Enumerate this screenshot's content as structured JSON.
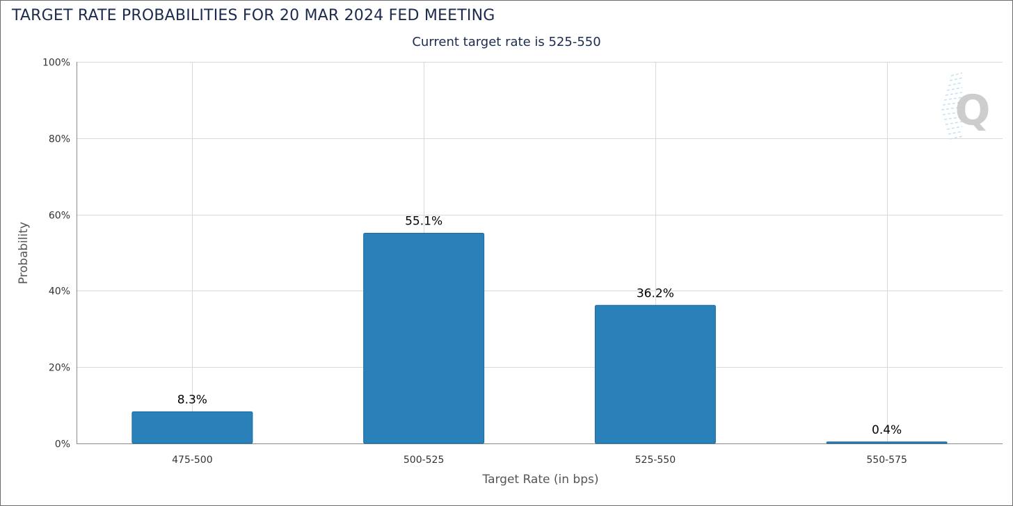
{
  "chart_data": {
    "type": "bar",
    "title": "TARGET RATE PROBABILITIES FOR 20 MAR 2024 FED MEETING",
    "subtitle": "Current target rate is 525-550",
    "xlabel": "Target Rate (in bps)",
    "ylabel": "Probability",
    "categories": [
      "475-500",
      "500-525",
      "525-550",
      "550-575"
    ],
    "values": [
      8.3,
      55.1,
      36.2,
      0.4
    ],
    "data_labels": [
      "8.3%",
      "55.1%",
      "36.2%",
      "0.4%"
    ],
    "ylim": [
      0,
      100
    ],
    "yticks": [
      0,
      20,
      40,
      60,
      80,
      100
    ],
    "ytick_labels": [
      "0%",
      "20%",
      "40%",
      "60%",
      "80%",
      "100%"
    ],
    "grid": true,
    "bar_color": "#2a80b9",
    "watermark_letter": "Q"
  }
}
